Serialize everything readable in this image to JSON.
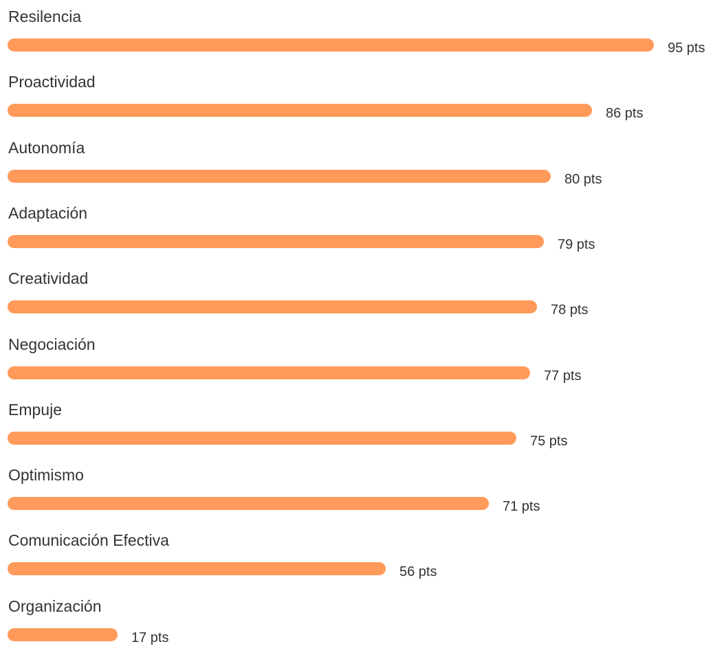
{
  "chart_data": {
    "type": "bar",
    "orientation": "horizontal",
    "value_suffix": " pts",
    "bar_color": "#ff9a5b",
    "xlim": [
      0,
      100
    ],
    "grid": false,
    "categories": [
      "Resilencia",
      "Proactividad",
      "Autonomía",
      "Adaptación",
      "Creatividad",
      "Negociación",
      "Empuje",
      "Optimismo",
      "Comunicación Efectiva",
      "Organización"
    ],
    "values": [
      95,
      86,
      80,
      79,
      78,
      77,
      75,
      71,
      56,
      17
    ]
  }
}
